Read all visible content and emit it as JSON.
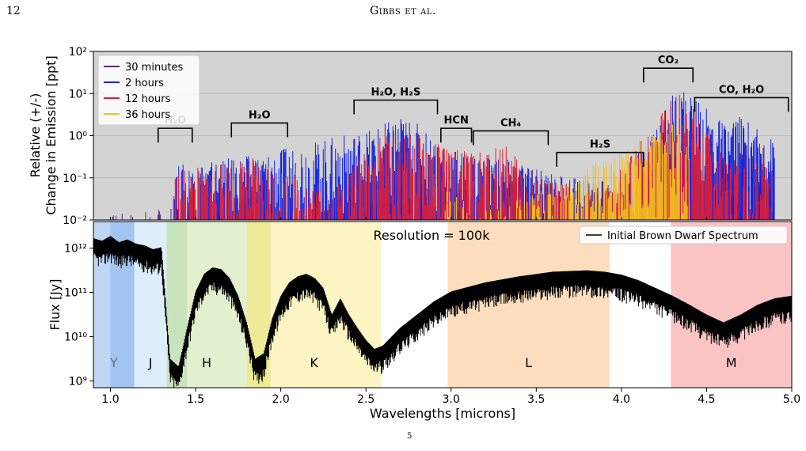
{
  "page": {
    "number": "12",
    "running_head": "Gibbs et al.",
    "caption_fragment": "5"
  },
  "colors": {
    "t30min": "#5b2a86",
    "t2h": "#1020e0",
    "t12h": "#d81e3a",
    "t36h": "#f4c21c",
    "panel_bg": "#d3d3d3",
    "spectrum": "#000000"
  },
  "chart_data": [
    {
      "type": "area",
      "ylabel_line1": "Relative (+/-)",
      "ylabel_line2": "Change in Emission [ppt]",
      "xlim": [
        0.9,
        5.0
      ],
      "ylim": [
        0.01,
        100
      ],
      "yscale": "log",
      "yticks": [
        "10⁻²",
        "10⁻¹",
        "10⁰",
        "10¹",
        "10²"
      ],
      "grid": true,
      "legend_position": "top-left",
      "legend": [
        "30 minutes",
        "2 hours",
        "12 hours",
        "36 hours"
      ],
      "series": [
        {
          "name": "30 minutes",
          "x": [
            0.9,
            1.35,
            1.6,
            1.85,
            2.3,
            2.7,
            3.0,
            3.3,
            3.6,
            3.8,
            4.0,
            4.3,
            4.6,
            4.9
          ],
          "y": [
            0.012,
            0.02,
            0.03,
            0.05,
            0.05,
            0.15,
            0.08,
            0.3,
            0.12,
            0.1,
            0.07,
            0.4,
            0.8,
            0.6
          ]
        },
        {
          "name": "2 hours",
          "x": [
            1.37,
            1.85,
            2.55,
            2.7,
            2.8,
            3.0,
            3.3,
            3.7,
            4.0,
            4.33,
            4.38,
            4.6,
            4.7,
            4.9
          ],
          "y": [
            0.2,
            0.35,
            1.5,
            3.0,
            2.0,
            0.5,
            0.3,
            0.1,
            0.08,
            15.0,
            12.0,
            2.0,
            3.0,
            0.8
          ]
        },
        {
          "name": "12 hours",
          "x": [
            1.37,
            1.85,
            2.3,
            2.6,
            2.8,
            3.0,
            3.2,
            3.3,
            3.5,
            3.9,
            4.33,
            4.4,
            4.6,
            4.9
          ],
          "y": [
            0.15,
            0.3,
            0.06,
            1.5,
            1.0,
            0.5,
            0.4,
            0.8,
            0.1,
            0.05,
            12.0,
            8.0,
            0.3,
            0.2
          ]
        },
        {
          "name": "36 hours",
          "x": [
            2.95,
            3.0,
            3.05,
            3.3,
            4.3,
            4.35,
            4.4
          ],
          "y": [
            0.04,
            0.06,
            0.03,
            0.02,
            2.0,
            1.5,
            0.5
          ]
        }
      ],
      "annotations": [
        {
          "label": "H₂O",
          "x_range": [
            1.28,
            1.48
          ],
          "level": 1.5
        },
        {
          "label": "H₂O",
          "x_range": [
            1.71,
            2.04
          ],
          "level": 2.0
        },
        {
          "label": "H₂O, H₂S",
          "x_range": [
            2.43,
            2.92
          ],
          "level": 7.0
        },
        {
          "label": "HCN",
          "x_range": [
            2.94,
            3.12
          ],
          "level": 1.5
        },
        {
          "label": "CH₄",
          "x_range": [
            3.13,
            3.57
          ],
          "level": 1.3
        },
        {
          "label": "H₂S",
          "x_range": [
            3.62,
            4.13
          ],
          "level": 0.4
        },
        {
          "label": "CO₂",
          "x_range": [
            4.13,
            4.42
          ],
          "level": 40
        },
        {
          "label": "CO, H₂O",
          "x_range": [
            4.43,
            4.98
          ],
          "level": 8.0
        }
      ]
    },
    {
      "type": "line",
      "xlabel": "Wavelengths [microns]",
      "ylabel": "Flux [Jy]",
      "xlim": [
        0.9,
        5.0
      ],
      "ylim": [
        700000000.0,
        4000000000000.0
      ],
      "yscale": "log",
      "xticks": [
        "1.0",
        "1.5",
        "2.0",
        "2.5",
        "3.0",
        "3.5",
        "4.0",
        "4.5",
        "5.0"
      ],
      "yticks": [
        "10⁹",
        "10¹⁰",
        "10¹¹",
        "10¹²"
      ],
      "text": "Resolution = 100k",
      "legend_position": "top-right",
      "legend": [
        "Initial Brown Dwarf Spectrum"
      ],
      "bands": [
        {
          "label": "Y",
          "x_range": [
            0.9,
            1.14
          ],
          "color": "#a9c8f0"
        },
        {
          "label": "J",
          "x_range": [
            1.14,
            1.33
          ],
          "color": "#d2e8f8"
        },
        {
          "label": "H",
          "x_range": [
            1.33,
            1.8
          ],
          "color": "#d9ebbf"
        },
        {
          "label": "K",
          "x_range": [
            1.8,
            2.59
          ],
          "color": "#fbf0ad"
        },
        {
          "label": "L",
          "x_range": [
            2.98,
            3.93
          ],
          "color": "#fbd3a8"
        },
        {
          "label": "M",
          "x_range": [
            4.29,
            5.0
          ],
          "color": "#fab0b0"
        }
      ],
      "series": [
        {
          "name": "Initial Brown Dwarf Spectrum",
          "x": [
            0.9,
            0.95,
            1.0,
            1.05,
            1.1,
            1.15,
            1.2,
            1.25,
            1.3,
            1.35,
            1.4,
            1.45,
            1.5,
            1.55,
            1.6,
            1.65,
            1.7,
            1.75,
            1.8,
            1.85,
            1.9,
            1.95,
            2.0,
            2.05,
            2.1,
            2.15,
            2.2,
            2.25,
            2.3,
            2.35,
            2.4,
            2.45,
            2.5,
            2.55,
            2.6,
            2.7,
            2.8,
            2.9,
            3.0,
            3.2,
            3.4,
            3.6,
            3.8,
            3.9,
            4.0,
            4.1,
            4.2,
            4.3,
            4.4,
            4.5,
            4.6,
            4.7,
            4.8,
            4.9,
            5.0
          ],
          "y": [
            1600000000000.0,
            1400000000000.0,
            1800000000000.0,
            1300000000000.0,
            1500000000000.0,
            1200000000000.0,
            1100000000000.0,
            900000000000.0,
            1000000000000.0,
            3000000000.0,
            2000000000.0,
            15000000000.0,
            100000000000.0,
            250000000000.0,
            350000000000.0,
            320000000000.0,
            200000000000.0,
            80000000000.0,
            20000000000.0,
            3000000000.0,
            4000000000.0,
            25000000000.0,
            80000000000.0,
            160000000000.0,
            220000000000.0,
            250000000000.0,
            200000000000.0,
            120000000000.0,
            30000000000.0,
            70000000000.0,
            30000000000.0,
            15000000000.0,
            8000000000.0,
            5000000000.0,
            6000000000.0,
            15000000000.0,
            30000000000.0,
            60000000000.0,
            100000000000.0,
            160000000000.0,
            220000000000.0,
            280000000000.0,
            300000000000.0,
            280000000000.0,
            240000000000.0,
            180000000000.0,
            120000000000.0,
            80000000000.0,
            50000000000.0,
            30000000000.0,
            20000000000.0,
            30000000000.0,
            50000000000.0,
            70000000000.0,
            80000000000.0
          ]
        }
      ]
    }
  ]
}
